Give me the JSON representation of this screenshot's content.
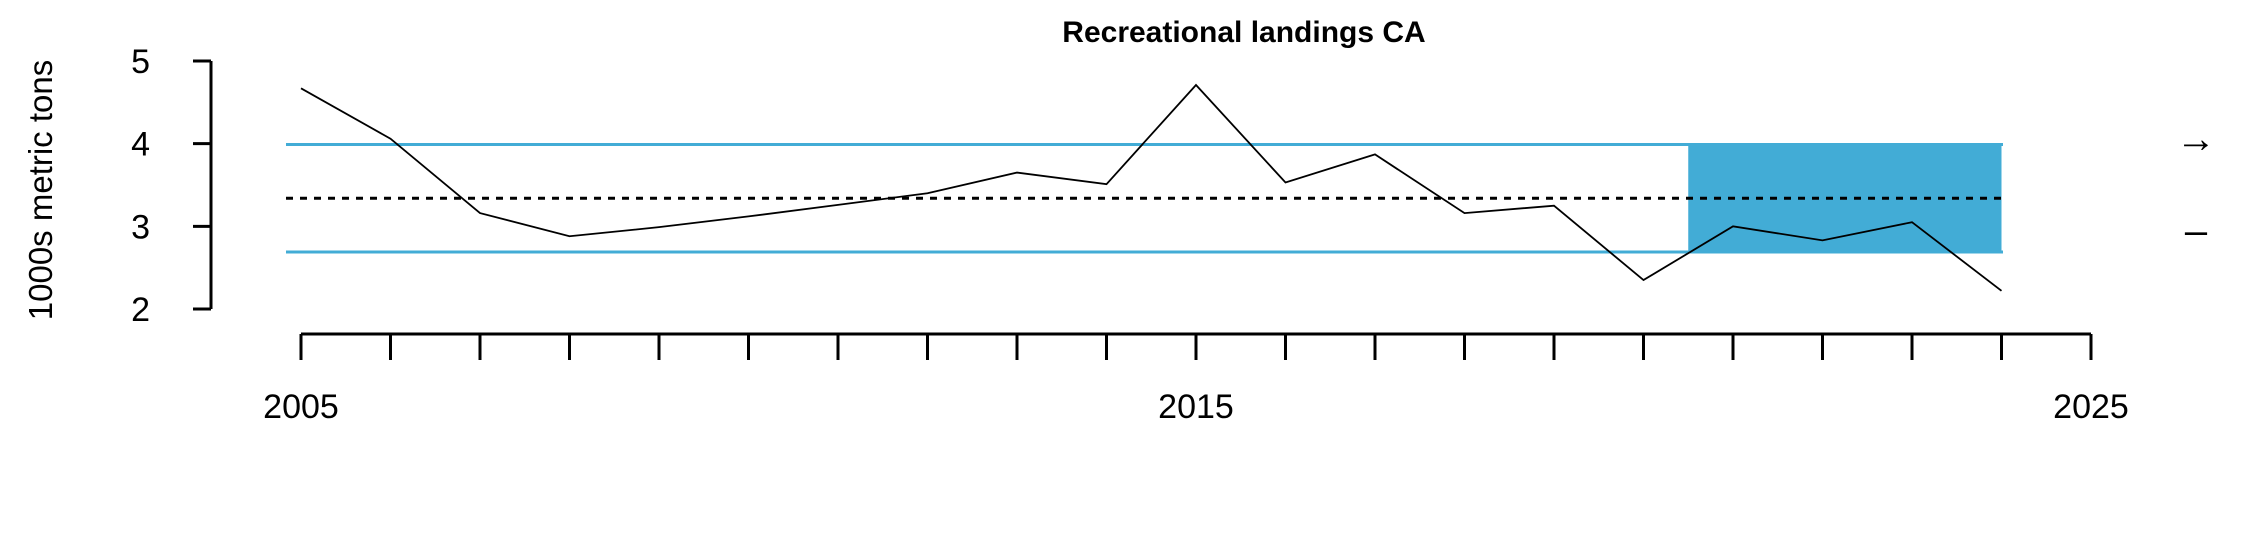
{
  "chart_data": {
    "type": "line",
    "title": "Recreational landings CA",
    "xlabel": "",
    "ylabel": "1000s metric tons",
    "xlim": [
      2005,
      2025
    ],
    "ylim": [
      2,
      5
    ],
    "x_tick_labels": [
      "2005",
      "2015",
      "2025"
    ],
    "x_minor_ticks": [
      2005,
      2006,
      2007,
      2008,
      2009,
      2010,
      2011,
      2012,
      2013,
      2014,
      2015,
      2016,
      2017,
      2018,
      2019,
      2020,
      2021,
      2022,
      2023,
      2024,
      2025
    ],
    "y_tick_labels": [
      "2",
      "3",
      "4",
      "5"
    ],
    "series": [
      {
        "x": [
          2005,
          2006,
          2007,
          2008,
          2009,
          2010,
          2011,
          2012,
          2013,
          2014,
          2015,
          2016,
          2017,
          2018,
          2019,
          2020,
          2021,
          2022,
          2023,
          2024
        ],
        "values": [
          4.67,
          4.06,
          3.16,
          2.88,
          2.99,
          3.12,
          3.26,
          3.4,
          3.65,
          3.51,
          4.71,
          3.53,
          3.87,
          3.16,
          3.25,
          2.35,
          3.0,
          2.83,
          3.05,
          2.22
        ]
      }
    ],
    "mean": 3.34,
    "upper_sd": 3.99,
    "lower_sd": 2.69,
    "recent_window": [
      2020.5,
      2024
    ],
    "trend_symbol": "→",
    "mean_symbol": "–",
    "colors": {
      "band": "#42acd6",
      "line": "#000000"
    }
  }
}
